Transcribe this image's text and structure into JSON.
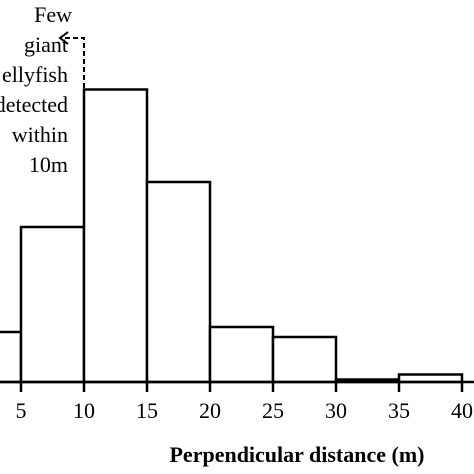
{
  "chart_data": {
    "type": "bar",
    "title": "",
    "xlabel": "Perpendicular distance (m)",
    "ylabel": "",
    "x_ticks": [
      "5",
      "10",
      "15",
      "20",
      "25",
      "30",
      "35",
      "40"
    ],
    "bins": [
      {
        "from": 0,
        "to": 5,
        "value": 20
      },
      {
        "from": 5,
        "to": 10,
        "value": 62
      },
      {
        "from": 10,
        "to": 15,
        "value": 117
      },
      {
        "from": 15,
        "to": 20,
        "value": 80
      },
      {
        "from": 20,
        "to": 25,
        "value": 22
      },
      {
        "from": 25,
        "to": 30,
        "value": 18
      },
      {
        "from": 30,
        "to": 35,
        "value": 1
      },
      {
        "from": 35,
        "to": 40,
        "value": 3
      }
    ],
    "xlim": [
      0,
      40
    ],
    "ylim": [
      0,
      120
    ],
    "annotation": {
      "lines": [
        "Few",
        "giant",
        "jellyfish",
        "detected",
        "within",
        "10m"
      ]
    }
  }
}
